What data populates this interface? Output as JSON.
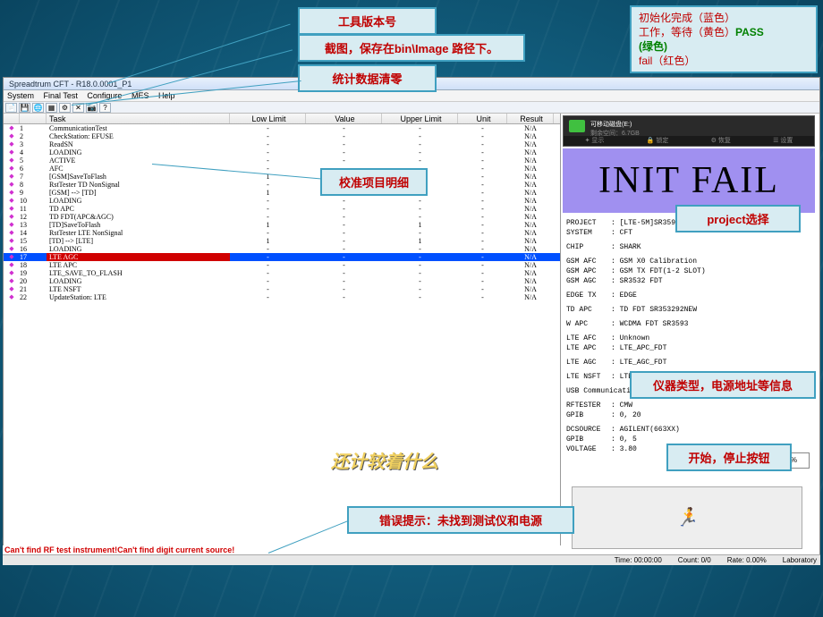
{
  "window": {
    "title": "Spreadtrum CFT - R18.0.0001_P1",
    "menus": [
      "System",
      "Final Test",
      "Configure",
      "MES",
      "Help"
    ]
  },
  "table": {
    "headers": [
      "",
      "",
      "Task",
      "Low Limit",
      "Value",
      "Upper Limit",
      "Unit",
      "Result"
    ],
    "rows": [
      {
        "n": "1",
        "task": "CommunicationTest",
        "low": "-",
        "val": "-",
        "up": "-",
        "unit": "-",
        "res": "N/A"
      },
      {
        "n": "2",
        "task": "CheckStation: EFUSE",
        "low": "-",
        "val": "-",
        "up": "-",
        "unit": "-",
        "res": "N/A"
      },
      {
        "n": "3",
        "task": "ReadSN",
        "low": "-",
        "val": "-",
        "up": "-",
        "unit": "-",
        "res": "N/A"
      },
      {
        "n": "4",
        "task": "LOADING",
        "low": "-",
        "val": "-",
        "up": "-",
        "unit": "-",
        "res": "N/A"
      },
      {
        "n": "5",
        "task": "ACTIVE",
        "low": "-",
        "val": "-",
        "up": "-",
        "unit": "-",
        "res": "N/A"
      },
      {
        "n": "6",
        "task": "AFC",
        "low": "-",
        "val": "-",
        "up": "-",
        "unit": "-",
        "res": "N/A"
      },
      {
        "n": "7",
        "task": "[GSM]SaveToFlash",
        "low": "1",
        "val": "-",
        "up": "1",
        "unit": "-",
        "res": "N/A"
      },
      {
        "n": "8",
        "task": "RstTester TD NonSignal",
        "low": "-",
        "val": "-",
        "up": "-",
        "unit": "-",
        "res": "N/A"
      },
      {
        "n": "9",
        "task": "[GSM] --> [TD]",
        "low": "1",
        "val": "-",
        "up": "1",
        "unit": "-",
        "res": "N/A"
      },
      {
        "n": "10",
        "task": "LOADING",
        "low": "-",
        "val": "-",
        "up": "-",
        "unit": "-",
        "res": "N/A"
      },
      {
        "n": "11",
        "task": "TD APC",
        "low": "-",
        "val": "-",
        "up": "-",
        "unit": "-",
        "res": "N/A"
      },
      {
        "n": "12",
        "task": "TD FDT(APC&AGC)",
        "low": "-",
        "val": "-",
        "up": "-",
        "unit": "-",
        "res": "N/A"
      },
      {
        "n": "13",
        "task": "[TD]SaveToFlash",
        "low": "1",
        "val": "-",
        "up": "1",
        "unit": "-",
        "res": "N/A"
      },
      {
        "n": "14",
        "task": "RstTester LTE NonSignal",
        "low": "-",
        "val": "-",
        "up": "-",
        "unit": "-",
        "res": "N/A"
      },
      {
        "n": "15",
        "task": "[TD] --> [LTE]",
        "low": "1",
        "val": "-",
        "up": "1",
        "unit": "-",
        "res": "N/A"
      },
      {
        "n": "16",
        "task": "LOADING",
        "low": "-",
        "val": "-",
        "up": "-",
        "unit": "-",
        "res": "N/A"
      },
      {
        "n": "17",
        "task": "LTE AGC",
        "low": "-",
        "val": "-",
        "up": "-",
        "unit": "-",
        "res": "N/A",
        "selected": true
      },
      {
        "n": "18",
        "task": "LTE APC",
        "low": "-",
        "val": "-",
        "up": "-",
        "unit": "-",
        "res": "N/A"
      },
      {
        "n": "19",
        "task": "LTE_SAVE_TO_FLASH",
        "low": "-",
        "val": "-",
        "up": "-",
        "unit": "-",
        "res": "N/A"
      },
      {
        "n": "20",
        "task": "LOADING",
        "low": "-",
        "val": "-",
        "up": "-",
        "unit": "-",
        "res": "N/A"
      },
      {
        "n": "21",
        "task": "LTE NSFT",
        "low": "-",
        "val": "-",
        "up": "-",
        "unit": "-",
        "res": "N/A"
      },
      {
        "n": "22",
        "task": "UpdateStation: LTE",
        "low": "-",
        "val": "-",
        "up": "-",
        "unit": "-",
        "res": "N/A"
      }
    ]
  },
  "disk": {
    "label": "可移动磁盘(E:)",
    "space": "剩余空间：6.7GB",
    "tabs": [
      "✦ 显示",
      "🔒 锁定",
      "⚙ 恢复",
      "☰ 设置"
    ]
  },
  "init_fail": "INIT FAIL",
  "details": [
    {
      "k": "PROJECT",
      "v": ": [LTE-5M]SR3593_FDT"
    },
    {
      "k": "SYSTEM",
      "v": ": CFT"
    },
    {
      "k": "",
      "v": ""
    },
    {
      "k": "CHIP",
      "v": ": SHARK"
    },
    {
      "k": "",
      "v": ""
    },
    {
      "k": "GSM AFC",
      "v": ": GSM X0 Calibration"
    },
    {
      "k": "GSM APC",
      "v": ": GSM TX FDT(1-2 SLOT)"
    },
    {
      "k": "GSM AGC",
      "v": ": SR3532 FDT"
    },
    {
      "k": "",
      "v": ""
    },
    {
      "k": "EDGE TX",
      "v": ": EDGE"
    },
    {
      "k": "",
      "v": ""
    },
    {
      "k": "TD APC",
      "v": ": TD FDT SR353292NEW"
    },
    {
      "k": "",
      "v": ""
    },
    {
      "k": "W APC",
      "v": ": WCDMA FDT SR3593"
    },
    {
      "k": "",
      "v": ""
    },
    {
      "k": "LTE AFC",
      "v": ": Unknown"
    },
    {
      "k": "LTE APC",
      "v": ": LTE_APC_FDT"
    },
    {
      "k": "",
      "v": ""
    },
    {
      "k": "LTE AGC",
      "v": ": LTE_AGC_FDT"
    },
    {
      "k": "",
      "v": ""
    },
    {
      "k": "LTE NSFT",
      "v": ": LTE NSFT"
    },
    {
      "k": "",
      "v": ""
    },
    {
      "k": "USB Communication",
      "v": ""
    },
    {
      "k": "",
      "v": ""
    },
    {
      "k": "RFTESTER",
      "v": ": CMW"
    },
    {
      "k": "GPIB",
      "v": ": 0, 20"
    },
    {
      "k": "",
      "v": ""
    },
    {
      "k": "DCSOURCE",
      "v": ": AGILENT(663XX)"
    },
    {
      "k": "GPIB",
      "v": ": 0, 5"
    },
    {
      "k": "VOLTAGE",
      "v": ": 3.80"
    }
  ],
  "start_btn": "90%",
  "green_circle": "Start",
  "error_text": "Can't find RF test instrument!Can't find digit current source!",
  "status": {
    "time": "Time: 00:00:00",
    "count": "Count: 0/0",
    "rate": "Rate: 0.00%",
    "place": "Laboratory"
  },
  "center_text": "还计较着什么",
  "callouts": {
    "version": "工具版本号",
    "screenshot": "截图，保存在bin\\Image 路径下。",
    "clear": "统计数据清零",
    "detail": "校准项目明细",
    "init": {
      "l1": "初始化完成（蓝色）",
      "l2": "工作，等待（黄色）",
      "l3": "PASS",
      "l4": "(绿色)",
      "l5": "fail（红色）"
    },
    "project": "project选择",
    "instrument": "仪器类型，电源地址等信息",
    "start": "开始，停止按钮",
    "error": "错误提示：未找到测试仪和电源"
  }
}
